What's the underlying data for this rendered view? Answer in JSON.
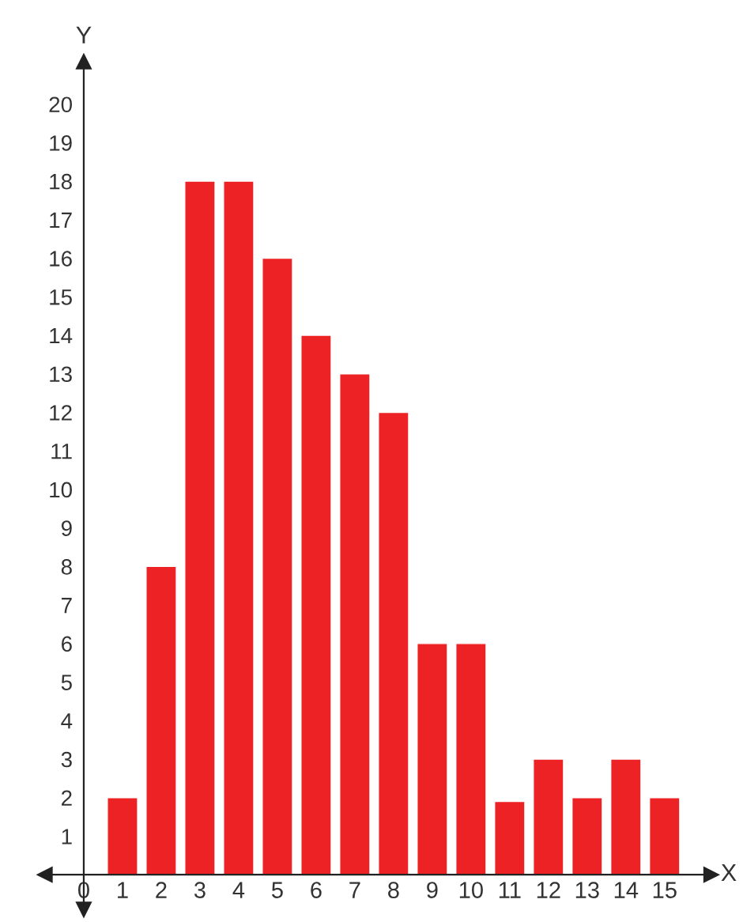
{
  "chart_data": {
    "type": "bar",
    "xlabel": "X",
    "ylabel": "Y",
    "x": [
      1,
      2,
      3,
      4,
      5,
      6,
      7,
      8,
      9,
      10,
      11,
      12,
      13,
      14,
      15
    ],
    "values": [
      2,
      8,
      18,
      18,
      16,
      14,
      13,
      12,
      6,
      6,
      1.9,
      3,
      2,
      3,
      2
    ],
    "color": "#ed2224",
    "xlim": [
      -1,
      16.2
    ],
    "ylim": [
      -0.9,
      21.1
    ],
    "xticks": [
      {
        "value": 0,
        "label": "0"
      },
      1,
      2,
      3,
      4,
      5,
      6,
      7,
      8,
      9,
      10,
      11,
      12,
      13,
      14,
      15
    ],
    "yticks": [
      1,
      2,
      3,
      4,
      5,
      6,
      7,
      8,
      9,
      10,
      11,
      12,
      13,
      14,
      15,
      16,
      17,
      18,
      19,
      20
    ],
    "grid": false,
    "legend": false
  }
}
